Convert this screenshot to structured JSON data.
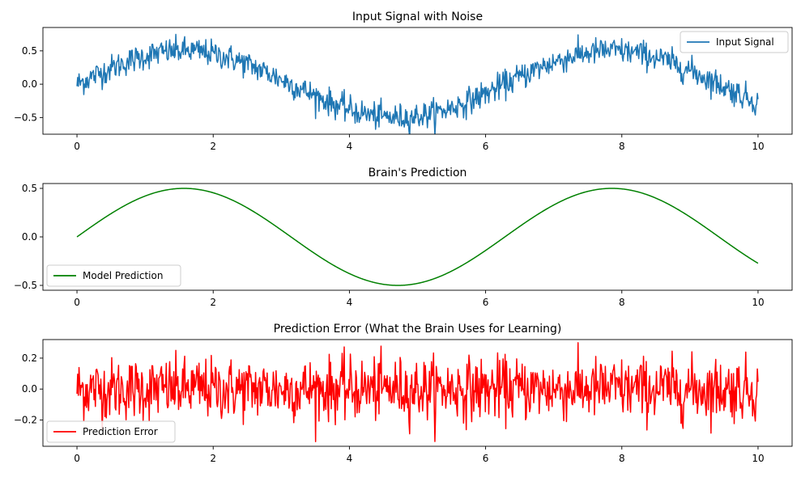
{
  "chart_data": [
    {
      "type": "line",
      "title": "Input Signal with Noise",
      "xlabel": "",
      "ylabel": "",
      "xlim": [
        -0.5,
        10.5
      ],
      "ylim": [
        -0.75,
        0.85
      ],
      "xticks": [
        0,
        2,
        4,
        6,
        8,
        10
      ],
      "yticks": [
        -0.5,
        0.0,
        0.5
      ],
      "grid": false,
      "legend": "top-right",
      "series": [
        {
          "name": "Input Signal",
          "color": "#1f77b4",
          "function": "0.5*sin(x) + gaussian noise (sd ~0.1)",
          "x_range": [
            0,
            10
          ],
          "n_points": 1000
        }
      ]
    },
    {
      "type": "line",
      "title": "Brain's Prediction",
      "xlabel": "",
      "ylabel": "",
      "xlim": [
        -0.5,
        10.5
      ],
      "ylim": [
        -0.55,
        0.55
      ],
      "xticks": [
        0,
        2,
        4,
        6,
        8,
        10
      ],
      "yticks": [
        -0.5,
        0.0,
        0.5
      ],
      "grid": false,
      "legend": "bottom-left",
      "series": [
        {
          "name": "Model Prediction",
          "color": "#008000",
          "function": "0.5*sin(x)",
          "x_range": [
            0,
            10
          ],
          "n_points": 1000
        }
      ]
    },
    {
      "type": "line",
      "title": "Prediction Error (What the Brain Uses for Learning)",
      "xlabel": "",
      "ylabel": "",
      "xlim": [
        -0.5,
        10.5
      ],
      "ylim": [
        -0.37,
        0.32
      ],
      "xticks": [
        0,
        2,
        4,
        6,
        8,
        10
      ],
      "yticks": [
        -0.2,
        0.0,
        0.2
      ],
      "grid": false,
      "legend": "bottom-left",
      "series": [
        {
          "name": "Prediction Error",
          "color": "#ff0000",
          "function": "input - prediction (gaussian noise, sd ~0.1)",
          "x_range": [
            0,
            10
          ],
          "n_points": 1000
        }
      ]
    }
  ]
}
